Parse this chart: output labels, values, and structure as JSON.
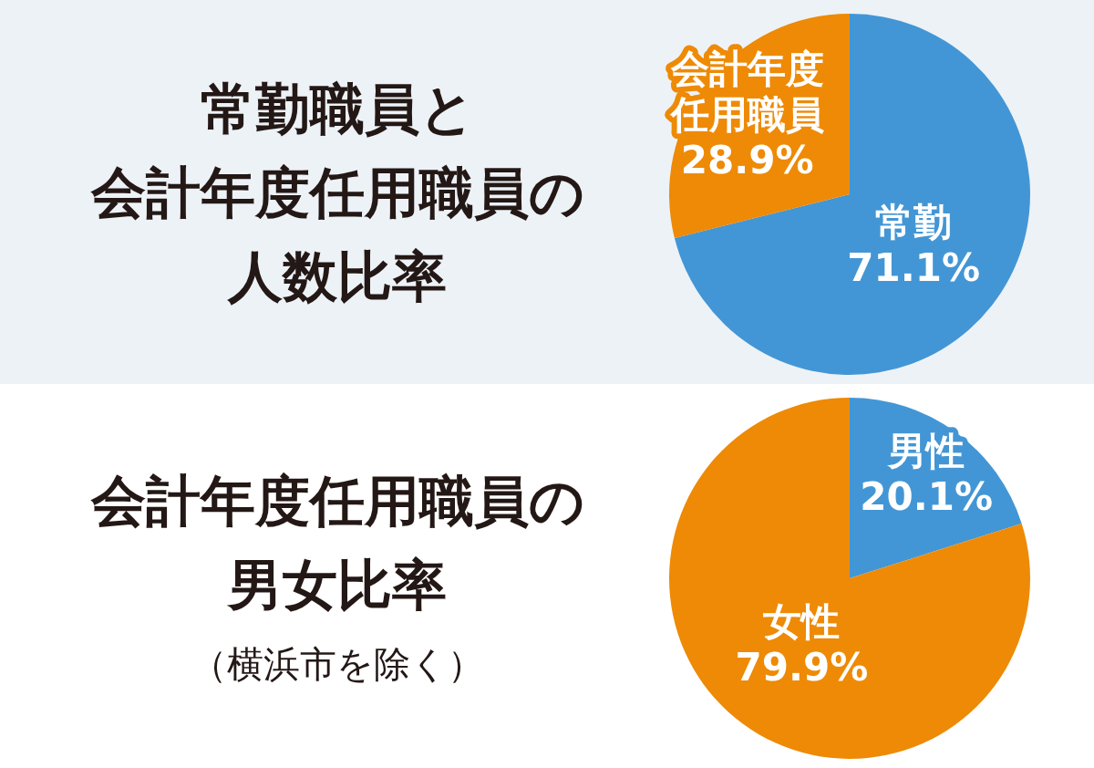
{
  "chart_data": [
    {
      "type": "pie",
      "title": "常勤職員と会計年度任用職員の人数比率",
      "categories": [
        "常勤",
        "会計年度任用職員"
      ],
      "values": [
        71.1,
        28.9
      ],
      "value_labels": [
        "71.1%",
        "28.9%"
      ],
      "colors": [
        "#4396d5",
        "#ee8a05"
      ]
    },
    {
      "type": "pie",
      "title": "会計年度任用職員の男女比率",
      "subtitle": "（横浜市を除く）",
      "categories": [
        "男性",
        "女性"
      ],
      "values": [
        20.1,
        79.9
      ],
      "value_labels": [
        "20.1%",
        "79.9%"
      ],
      "colors": [
        "#4396d5",
        "#ee8a05"
      ]
    }
  ]
}
